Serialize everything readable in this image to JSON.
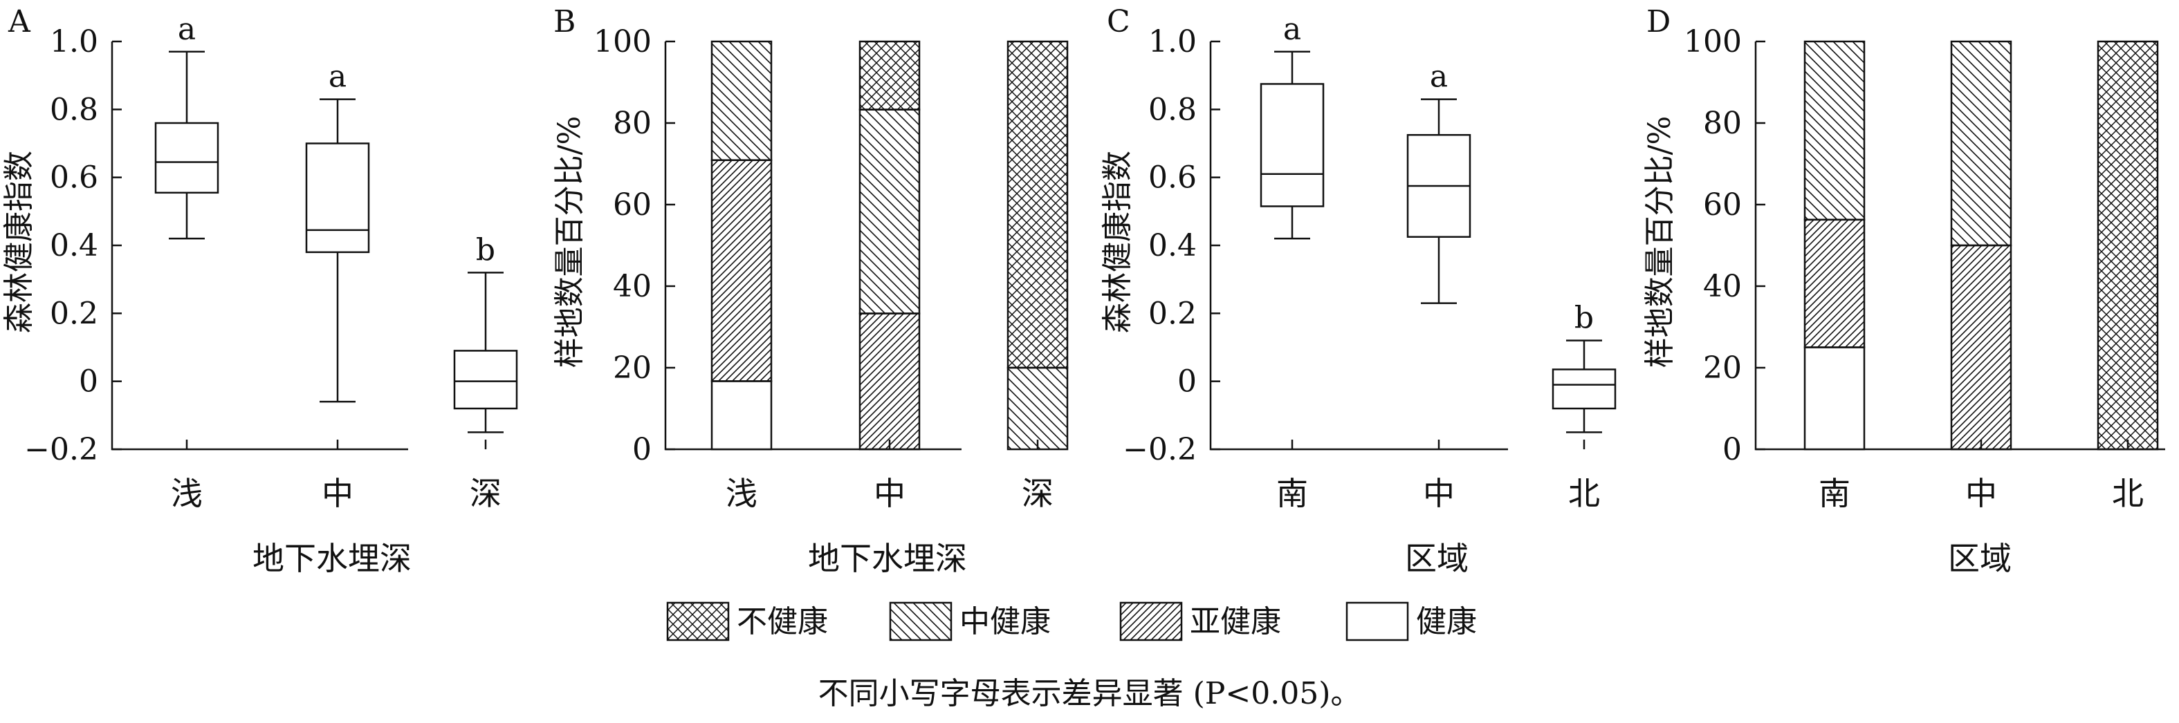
{
  "colors": {
    "ink": "#111111",
    "background": "#ffffff"
  },
  "legend": {
    "items": [
      {
        "label": "不健康",
        "pattern": "crosshatch"
      },
      {
        "label": "中健康",
        "pattern": "backslash"
      },
      {
        "label": "亚健康",
        "pattern": "slash"
      },
      {
        "label": "健康",
        "pattern": "none"
      }
    ]
  },
  "caption": "不同小写字母表示差异显著 (P<0.05)。",
  "chart_data": [
    {
      "panel": "A",
      "type": "box",
      "ylabel": "森林健康指数",
      "xlabel": "地下水埋深",
      "ylim": [
        -0.2,
        1.0
      ],
      "yticks": [
        -0.2,
        0,
        0.2,
        0.4,
        0.6,
        0.8,
        1.0
      ],
      "ytick_labels": [
        "−0.2",
        "0",
        "0.2",
        "0.4",
        "0.6",
        "0.8",
        "1.0"
      ],
      "categories": [
        "浅",
        "中",
        "深"
      ],
      "boxes": [
        {
          "category": "浅",
          "min": 0.42,
          "q1": 0.555,
          "median": 0.645,
          "q3": 0.76,
          "max": 0.97,
          "letter": "a"
        },
        {
          "category": "中",
          "min": -0.06,
          "q1": 0.38,
          "median": 0.445,
          "q3": 0.7,
          "max": 0.83,
          "letter": "a"
        },
        {
          "category": "深",
          "min": -0.15,
          "q1": -0.08,
          "median": 0.0,
          "q3": 0.09,
          "max": 0.32,
          "letter": "b"
        }
      ]
    },
    {
      "panel": "B",
      "type": "stacked-bar",
      "ylabel": "样地数量百分比/%",
      "xlabel": "地下水埋深",
      "ylim": [
        0,
        100
      ],
      "yticks": [
        0,
        20,
        40,
        60,
        80,
        100
      ],
      "ytick_labels": [
        "0",
        "20",
        "40",
        "60",
        "80",
        "100"
      ],
      "categories": [
        "浅",
        "中",
        "深"
      ],
      "series": [
        {
          "name": "健康",
          "pattern": "none",
          "values": [
            16.7,
            0,
            0
          ]
        },
        {
          "name": "亚健康",
          "pattern": "slash",
          "values": [
            54.2,
            33.3,
            0
          ]
        },
        {
          "name": "中健康",
          "pattern": "backslash",
          "values": [
            29.1,
            50.0,
            20.0
          ]
        },
        {
          "name": "不健康",
          "pattern": "crosshatch",
          "values": [
            0,
            16.7,
            80.0
          ]
        }
      ]
    },
    {
      "panel": "C",
      "type": "box",
      "ylabel": "森林健康指数",
      "xlabel": "区域",
      "ylim": [
        -0.2,
        1.0
      ],
      "yticks": [
        -0.2,
        0,
        0.2,
        0.4,
        0.6,
        0.8,
        1.0
      ],
      "ytick_labels": [
        "−0.2",
        "0",
        "0.2",
        "0.4",
        "0.6",
        "0.8",
        "1.0"
      ],
      "categories": [
        "南",
        "中",
        "北"
      ],
      "boxes": [
        {
          "category": "南",
          "min": 0.42,
          "q1": 0.515,
          "median": 0.61,
          "q3": 0.875,
          "max": 0.97,
          "letter": "a"
        },
        {
          "category": "中",
          "min": 0.23,
          "q1": 0.425,
          "median": 0.575,
          "q3": 0.725,
          "max": 0.83,
          "letter": "a"
        },
        {
          "category": "北",
          "min": -0.15,
          "q1": -0.08,
          "median": -0.01,
          "q3": 0.035,
          "max": 0.12,
          "letter": "b"
        }
      ]
    },
    {
      "panel": "D",
      "type": "stacked-bar",
      "ylabel": "样地数量百分比/%",
      "xlabel": "区域",
      "ylim": [
        0,
        100
      ],
      "yticks": [
        0,
        20,
        40,
        60,
        80,
        100
      ],
      "ytick_labels": [
        "0",
        "20",
        "40",
        "60",
        "80",
        "100"
      ],
      "categories": [
        "南",
        "中",
        "北"
      ],
      "series": [
        {
          "name": "健康",
          "pattern": "none",
          "values": [
            25.0,
            0,
            0
          ]
        },
        {
          "name": "亚健康",
          "pattern": "slash",
          "values": [
            31.3,
            50.0,
            0
          ]
        },
        {
          "name": "中健康",
          "pattern": "backslash",
          "values": [
            43.7,
            50.0,
            0
          ]
        },
        {
          "name": "不健康",
          "pattern": "crosshatch",
          "values": [
            0,
            0,
            100.0
          ]
        }
      ]
    }
  ]
}
